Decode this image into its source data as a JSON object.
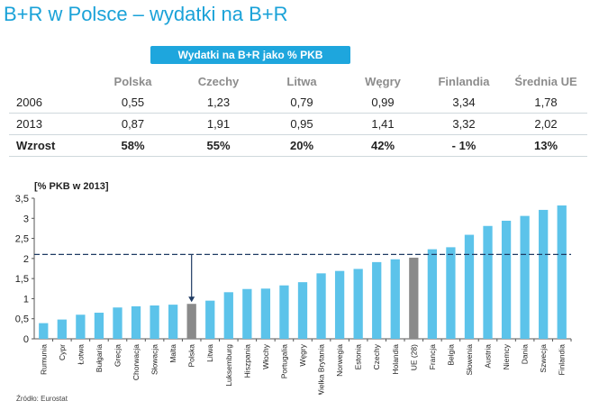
{
  "title": "B+R w Polsce – wydatki na B+R",
  "table": {
    "banner": "Wydatki na B+R jako % PKB",
    "headers": [
      "",
      "Polska",
      "Czechy",
      "Litwa",
      "Węgry",
      "Finlandia",
      "Średnia UE"
    ],
    "rows": [
      [
        "2006",
        "0,55",
        "1,23",
        "0,79",
        "0,99",
        "3,34",
        "1,78"
      ],
      [
        "2013",
        "0,87",
        "1,91",
        "0,95",
        "1,41",
        "3,32",
        "2,02"
      ],
      [
        "Wzrost",
        "58%",
        "55%",
        "20%",
        "42%",
        "- 1%",
        "13%"
      ]
    ]
  },
  "chart_data": {
    "type": "bar",
    "ylabel": "[% PKB w 2013]",
    "ylim": [
      0,
      3.5
    ],
    "yticks": [
      "0",
      "0,5",
      "1",
      "1,5",
      "2",
      "2,5",
      "3",
      "3,5"
    ],
    "reference_line": 2.1,
    "categories": [
      "Rumunia",
      "Cypr",
      "Łotwa",
      "Bułgaria",
      "Grecja",
      "Chorwacja",
      "Słowacja",
      "Malta",
      "Polska",
      "Litwa",
      "Luksemburg",
      "Hiszpania",
      "Włochy",
      "Portugalia",
      "Węgry",
      "Wielka Brytania",
      "Norwegia",
      "Estonia",
      "Czechy",
      "Holandia",
      "UE (28)",
      "Francja",
      "Belgia",
      "Słowenia",
      "Austria",
      "Niemcy",
      "Dania",
      "Szwecja",
      "Finlandia"
    ],
    "values": [
      0.39,
      0.48,
      0.6,
      0.65,
      0.78,
      0.81,
      0.83,
      0.85,
      0.87,
      0.95,
      1.16,
      1.24,
      1.25,
      1.33,
      1.41,
      1.63,
      1.69,
      1.74,
      1.91,
      1.98,
      2.02,
      2.23,
      2.28,
      2.59,
      2.81,
      2.94,
      3.06,
      3.21,
      3.32
    ],
    "highlight": [
      "Polska",
      "UE (28)"
    ],
    "arrow_target": "Polska",
    "colors": {
      "bar": "#5cc3ea",
      "highlight": "#8a8a8a",
      "refline": "#1f3b63",
      "arrow": "#1f3b63"
    }
  },
  "source": "Źródło: Eurostat"
}
